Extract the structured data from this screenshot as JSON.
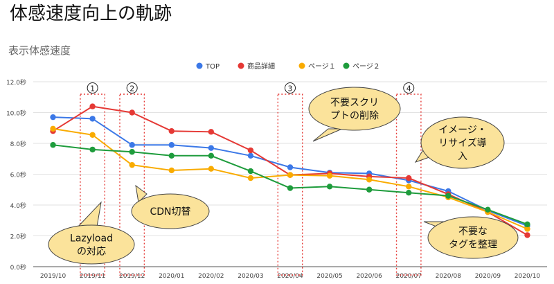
{
  "page": {
    "heading": "体感速度向上の軌跡",
    "chart_title": "表示体感速度"
  },
  "chart_data": {
    "type": "line",
    "title": "表示体感速度",
    "xlabel": "",
    "ylabel": "",
    "categories": [
      "2019/10",
      "2019/11",
      "2019/12",
      "2020/01",
      "2020/02",
      "2020/03",
      "2020/04",
      "2020/05",
      "2020/06",
      "2020/07",
      "2020/08",
      "2020/09",
      "2020/10"
    ],
    "y_ticks": [
      "0.0秒",
      "2.0秒",
      "4.0秒",
      "6.0秒",
      "8.0秒",
      "10.0秒",
      "12.0秒"
    ],
    "ylim": [
      0,
      12
    ],
    "grid": true,
    "legend_position": "top",
    "series": [
      {
        "name": "TOP",
        "color": "#3b78e7",
        "values": [
          9.7,
          9.6,
          7.9,
          7.9,
          7.7,
          7.2,
          6.45,
          6.1,
          6.05,
          5.6,
          4.9,
          3.65,
          2.65
        ]
      },
      {
        "name": "商品詳細",
        "color": "#e53935",
        "values": [
          8.8,
          10.4,
          10.0,
          8.8,
          8.75,
          7.55,
          5.95,
          6.05,
          5.85,
          5.75,
          4.7,
          3.55,
          2.05
        ]
      },
      {
        "name": "ページ１",
        "color": "#f9ab00",
        "values": [
          8.95,
          8.55,
          6.6,
          6.25,
          6.35,
          5.75,
          5.95,
          5.9,
          5.65,
          5.2,
          4.5,
          3.55,
          2.45
        ]
      },
      {
        "name": "ページ２",
        "color": "#1e9c3c",
        "values": [
          7.9,
          7.6,
          7.45,
          7.2,
          7.2,
          6.2,
          5.1,
          5.2,
          5.0,
          4.8,
          4.6,
          3.7,
          2.75
        ]
      }
    ],
    "milestones": [
      {
        "label": "①",
        "category_index": 1
      },
      {
        "label": "②",
        "category_index": 2
      },
      {
        "label": "③",
        "category_index": 6
      },
      {
        "label": "④",
        "category_index": 9
      }
    ],
    "callouts": [
      {
        "lines": [
          "Lazyload",
          "の対応"
        ]
      },
      {
        "lines": [
          "CDN切替"
        ]
      },
      {
        "lines": [
          "不要スクリ",
          "プトの削除"
        ]
      },
      {
        "lines": [
          "イメージ・",
          "リサイズ導",
          "入"
        ]
      },
      {
        "lines": [
          "不要な",
          "タグを整理"
        ]
      }
    ]
  }
}
